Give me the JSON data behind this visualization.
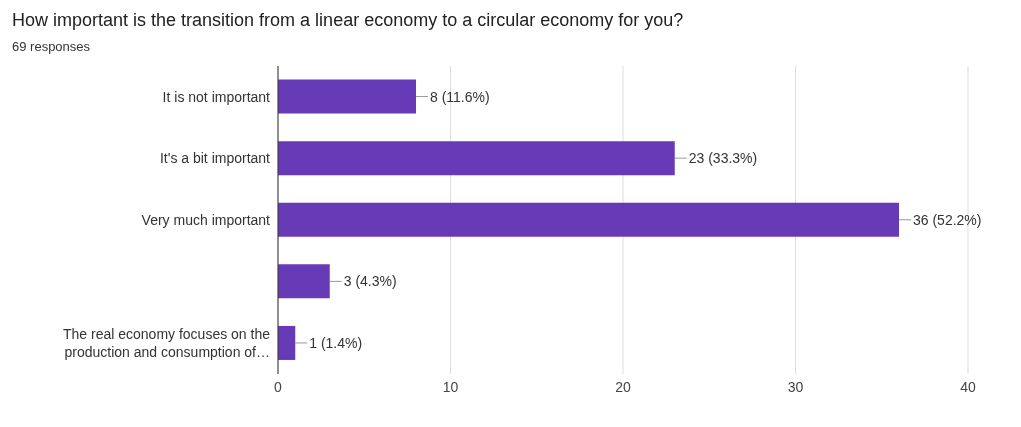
{
  "chart_data": {
    "type": "bar",
    "orientation": "horizontal",
    "title": "How important is the transition from a linear economy to a circular economy for you?",
    "subtitle": "69 responses",
    "categories": [
      "It is not important",
      "It's a bit important",
      "Very much important",
      null,
      "The real economy focuses on the production and consumption of…"
    ],
    "values": [
      8,
      23,
      36,
      3,
      1
    ],
    "value_labels": [
      "8 (11.6%)",
      "23 (33.3%)",
      "36 (52.2%)",
      "3 (4.3%)",
      "1 (1.4%)"
    ],
    "color": "#673ab7",
    "xlim": [
      0,
      40
    ],
    "xticks": [
      0,
      10,
      20,
      30,
      40
    ],
    "grid": "x"
  }
}
